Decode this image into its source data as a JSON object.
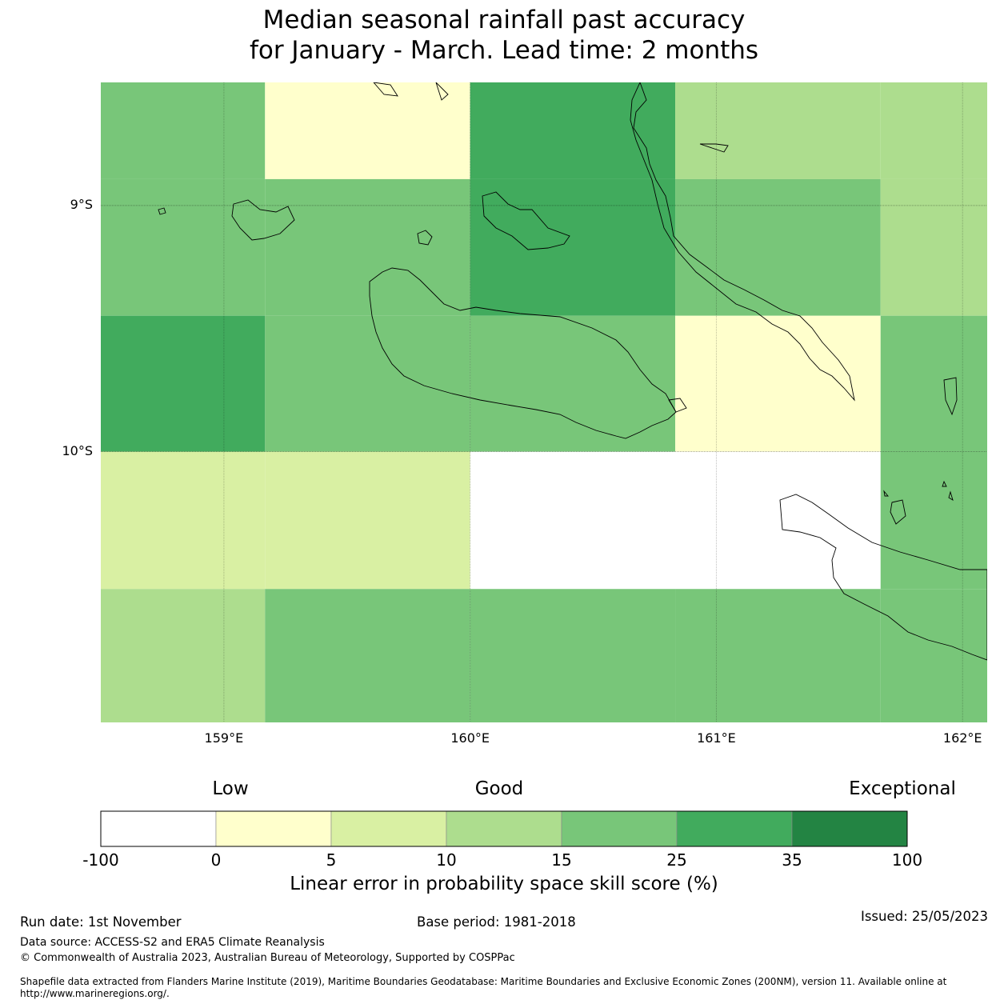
{
  "title_line1": "Median seasonal rainfall past accuracy",
  "title_line2": "for January - March. Lead time: 2 months",
  "map": {
    "lon_range": [
      158.5,
      162.1
    ],
    "lat_range": [
      -11.1,
      -8.5
    ],
    "lon_ticks": [
      {
        "value": 159,
        "label": "159°E"
      },
      {
        "value": 160,
        "label": "160°E"
      },
      {
        "value": 161,
        "label": "161°E"
      },
      {
        "value": 162,
        "label": "162°E"
      }
    ],
    "lat_ticks": [
      {
        "value": -9,
        "label": "9°S"
      },
      {
        "value": -10,
        "label": "10°S"
      }
    ],
    "cell_lon_edges": [
      158.333,
      159.167,
      160.0,
      160.833,
      161.667,
      162.5
    ],
    "cell_lat_edges": [
      -8.337,
      -8.893,
      -9.448,
      -10.0,
      -10.558,
      -11.11
    ],
    "cell_categories": [
      [
        4,
        1,
        5,
        3,
        3
      ],
      [
        4,
        4,
        5,
        4,
        3
      ],
      [
        5,
        4,
        4,
        1,
        4
      ],
      [
        2,
        2,
        0,
        0,
        4
      ],
      [
        3,
        4,
        4,
        4,
        4
      ]
    ]
  },
  "colorbar": {
    "qualitative_labels": [
      "Low",
      "Good",
      "Exceptional"
    ],
    "bounds": [
      "-100",
      "0",
      "5",
      "10",
      "15",
      "25",
      "35",
      "100"
    ],
    "colors": [
      "#ffffff",
      "#ffffcc",
      "#d9f0a3",
      "#addd8e",
      "#78c679",
      "#41ab5d",
      "#238443"
    ],
    "label": "Linear error in probability space skill score (%)"
  },
  "footer": {
    "run_date": "Run date: 1st November",
    "base_period": "Base period: 1981-2018",
    "issued": "Issued: 25/05/2023",
    "data_source": "Data source: ACCESS-S2 and ERA5 Climate Reanalysis",
    "copyright": "© Commonwealth of Australia 2023, Australian Bureau of Meteorology, Supported by COSPPac",
    "shapefile_line1": "Shapefile data extracted from Flanders Marine Institute (2019), Maritime Boundaries Geodatabase: Maritime Boundaries and Exclusive Economic Zones (200NM), version 11. Available online at",
    "shapefile_line2": "http://www.marineregions.org/."
  }
}
